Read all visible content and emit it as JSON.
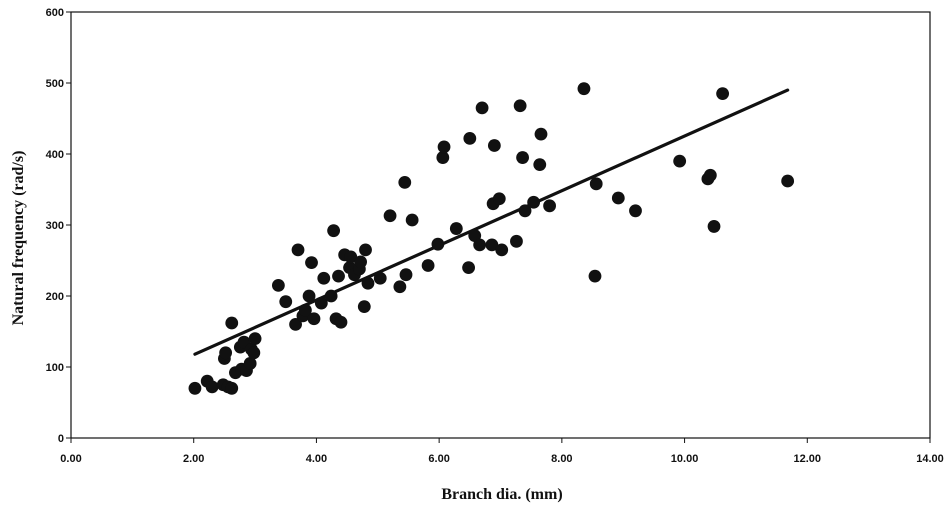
{
  "chart_data": {
    "type": "scatter",
    "xlabel": "Branch dia. (mm)",
    "ylabel": "Natural frequency (rad/s)",
    "xlim": [
      0,
      14
    ],
    "ylim": [
      0,
      600
    ],
    "x_ticks": [
      "0.00",
      "2.00",
      "4.00",
      "6.00",
      "8.00",
      "10.00",
      "12.00",
      "14.00"
    ],
    "y_ticks": [
      "0",
      "100",
      "200",
      "300",
      "400",
      "500",
      "600"
    ],
    "grid": false,
    "legend": "none",
    "marker_color": "#111111",
    "line_color": "#111111",
    "trendline": {
      "x": [
        2.02,
        11.68
      ],
      "y": [
        118,
        490
      ]
    },
    "points": {
      "x": [
        2.02,
        2.22,
        2.3,
        2.48,
        2.5,
        2.52,
        2.56,
        2.62,
        2.62,
        2.68,
        2.76,
        2.78,
        2.82,
        2.86,
        2.92,
        2.94,
        2.98,
        3.0,
        3.38,
        3.5,
        3.66,
        3.7,
        3.78,
        3.82,
        3.88,
        3.92,
        3.96,
        4.08,
        4.12,
        4.24,
        4.28,
        4.32,
        4.36,
        4.4,
        4.46,
        4.54,
        4.56,
        4.62,
        4.7,
        4.72,
        4.78,
        4.8,
        4.84,
        5.04,
        5.2,
        5.36,
        5.44,
        5.46,
        5.56,
        5.82,
        5.98,
        6.06,
        6.08,
        6.28,
        6.48,
        6.5,
        6.58,
        6.66,
        6.7,
        6.86,
        6.88,
        6.9,
        6.98,
        7.02,
        7.26,
        7.32,
        7.36,
        7.4,
        7.54,
        7.64,
        7.66,
        7.8,
        8.36,
        8.54,
        8.56,
        8.92,
        9.2,
        9.92,
        10.38,
        10.42,
        10.48,
        10.62,
        11.68
      ],
      "y": [
        70,
        80,
        72,
        75,
        112,
        120,
        72,
        162,
        70,
        92,
        128,
        97,
        135,
        95,
        105,
        125,
        120,
        140,
        215,
        192,
        160,
        265,
        172,
        180,
        200,
        247,
        168,
        190,
        225,
        200,
        292,
        168,
        228,
        163,
        258,
        240,
        255,
        230,
        238,
        248,
        185,
        265,
        218,
        225,
        313,
        213,
        360,
        230,
        307,
        243,
        273,
        395,
        410,
        295,
        240,
        422,
        285,
        272,
        465,
        272,
        330,
        412,
        337,
        265,
        277,
        468,
        395,
        320,
        332,
        385,
        428,
        327,
        492,
        228,
        358,
        338,
        320,
        390,
        365,
        370,
        298,
        485,
        362
      ]
    }
  }
}
